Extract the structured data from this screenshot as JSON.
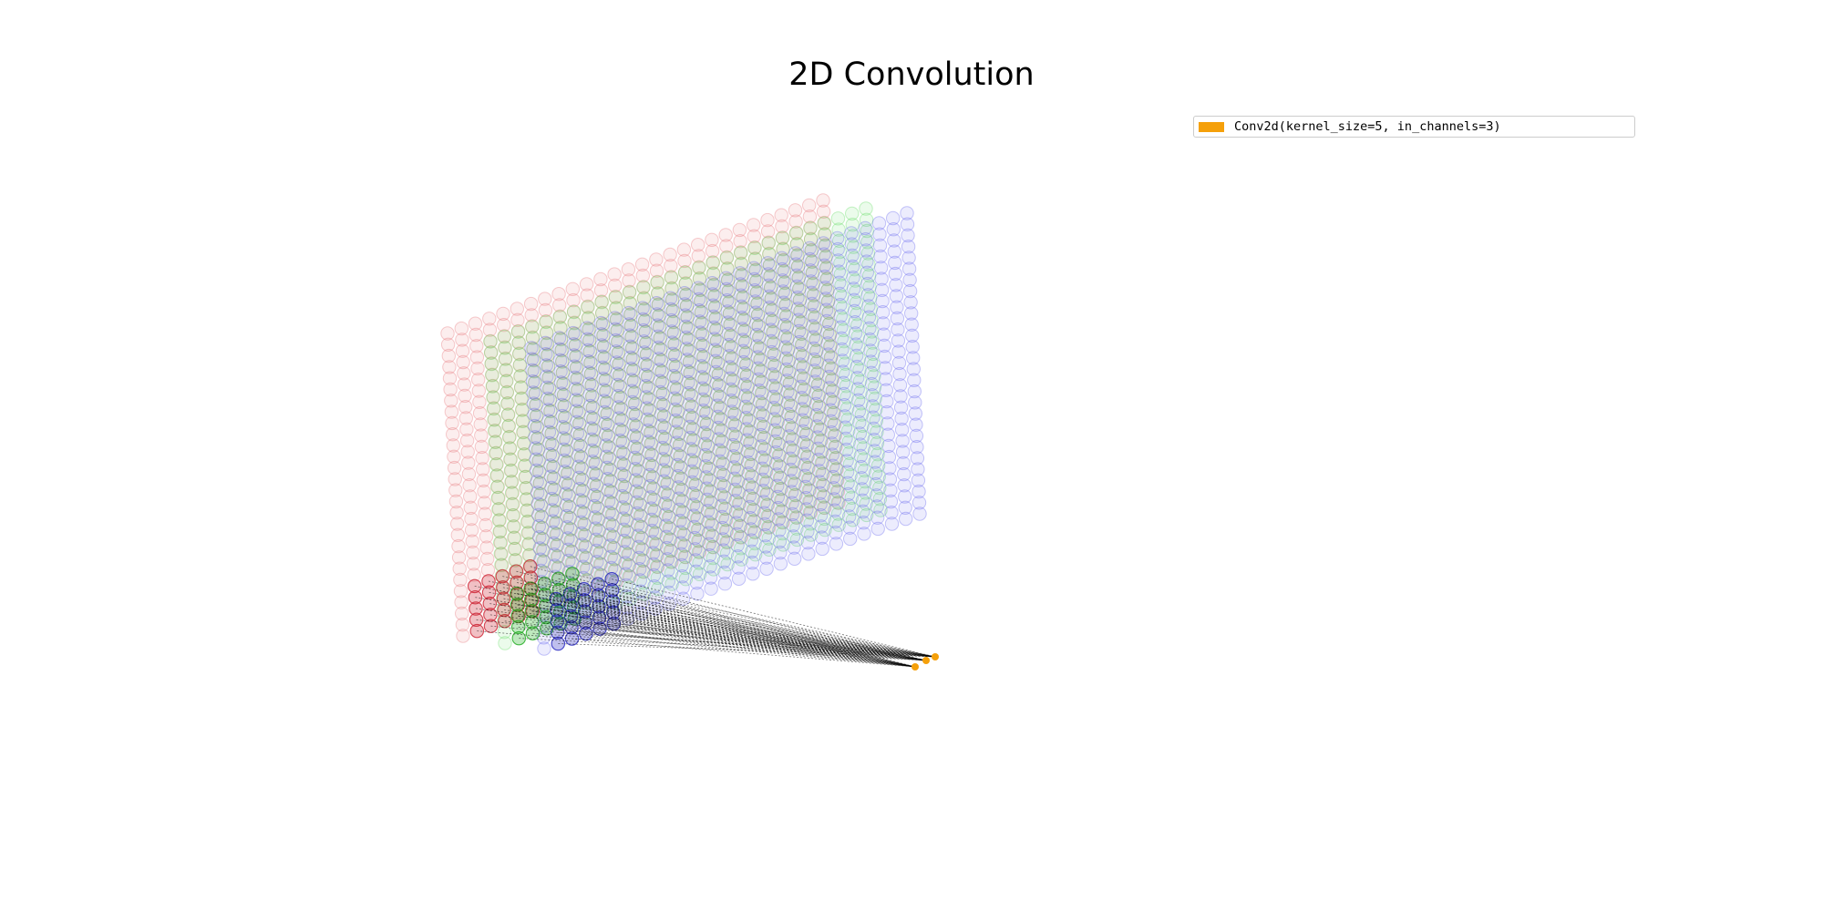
{
  "title": "2D Convolution",
  "legend": {
    "label": "Conv2d(kernel_size=5, in_channels=3)",
    "color": "#f5a00a"
  },
  "diagram": {
    "in_channels": 3,
    "kernel_size": 5,
    "grid_rows": 28,
    "grid_cols": 28,
    "output_points": 3,
    "channel_colors": [
      "#e8797f",
      "#66dd66",
      "#6a6aee"
    ],
    "kernel_colors": [
      "#cc2233",
      "#22aa22",
      "#2222bb"
    ],
    "connection_color": "#000000",
    "output_color": "#f5a00a"
  }
}
